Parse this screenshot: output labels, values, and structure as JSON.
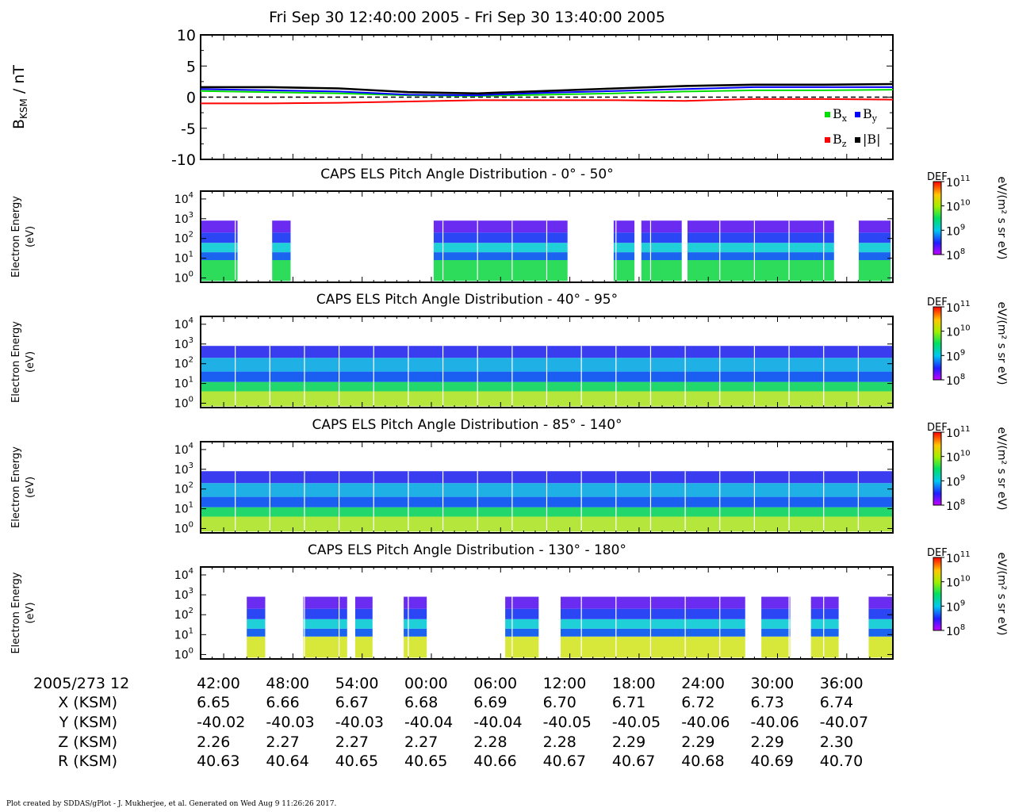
{
  "title": "Fri Sep 30 12:40:00 2005 - Fri Sep 30 13:40:00 2005",
  "footer": "Plot created by SDDAS/gPlot - J. Mukherjee, et al.  Generated on Wed Aug 9 11:26:26 2017.",
  "colors": {
    "bx": "#00dd00",
    "by": "#0000ff",
    "bz": "#ff0000",
    "btot": "#000000"
  },
  "chart_data": [
    {
      "type": "line",
      "ylabel_main": "B",
      "ylabel_sub": "KSM",
      "ylabel_unit": " / nT",
      "ylim": [
        -10,
        10
      ],
      "yticks": [
        "10",
        "5",
        "0",
        "-5",
        "-10"
      ],
      "xlim_minutes": [
        0,
        60
      ],
      "zero_line": "dashed",
      "legend": {
        "placement": "bottom-right",
        "entries": [
          {
            "key": "bx",
            "main": "B",
            "sub": "x"
          },
          {
            "key": "by",
            "main": "B",
            "sub": "y"
          },
          {
            "key": "bz",
            "main": "B",
            "sub": "z"
          },
          {
            "key": "btot",
            "main": "|B|",
            "sub": ""
          }
        ]
      },
      "series": [
        {
          "key": "bx",
          "minutes": [
            0,
            6,
            12,
            18,
            24,
            30,
            36,
            42,
            48,
            54,
            60
          ],
          "values": [
            1.0,
            0.8,
            0.6,
            0.3,
            0.2,
            0.4,
            0.6,
            0.9,
            1.1,
            1.1,
            1.2
          ]
        },
        {
          "key": "by",
          "minutes": [
            0,
            6,
            12,
            18,
            24,
            30,
            36,
            42,
            48,
            54,
            60
          ],
          "values": [
            1.3,
            1.1,
            0.9,
            0.4,
            0.3,
            0.7,
            1.0,
            1.3,
            1.6,
            1.6,
            1.6
          ]
        },
        {
          "key": "bz",
          "minutes": [
            0,
            6,
            12,
            18,
            24,
            30,
            36,
            42,
            48,
            54,
            60
          ],
          "values": [
            -1.0,
            -1.0,
            -0.9,
            -0.7,
            -0.5,
            -0.5,
            -0.5,
            -0.6,
            -0.3,
            -0.3,
            -0.4
          ]
        },
        {
          "key": "btot",
          "minutes": [
            0,
            6,
            12,
            18,
            24,
            30,
            36,
            42,
            48,
            54,
            60
          ],
          "values": [
            1.6,
            1.6,
            1.4,
            0.8,
            0.6,
            1.0,
            1.4,
            1.8,
            2.0,
            2.0,
            2.1
          ]
        }
      ]
    },
    {
      "type": "heatmap",
      "title": "CAPS ELS Pitch Angle Distribution - 0° - 50°",
      "ylabel_1": "Electron Energy",
      "ylabel_2": "(eV)",
      "y_scale": "log",
      "ylim": [
        0.6,
        25000
      ],
      "yticks": [
        1,
        10,
        100,
        1000,
        10000
      ],
      "colorbar": {
        "label": "DEF",
        "unit": "eV/(m² s sr eV)",
        "ticks": [
          8,
          9,
          10,
          11
        ],
        "scale": "log"
      },
      "data_intervals_minutes": [
        [
          0,
          3.2
        ],
        [
          6.2,
          7.8
        ],
        [
          20.2,
          31.8
        ],
        [
          35.8,
          37.6
        ],
        [
          38.2,
          41.7
        ],
        [
          42.2,
          54.9
        ],
        [
          57.0,
          59.8
        ]
      ],
      "bands": [
        {
          "from": 0.7,
          "to": 8,
          "color": "#2cdc5a"
        },
        {
          "from": 8,
          "to": 20,
          "color": "#1a64f0"
        },
        {
          "from": 20,
          "to": 60,
          "color": "#20d0d8"
        },
        {
          "from": 60,
          "to": 200,
          "color": "#2a46f5"
        },
        {
          "from": 200,
          "to": 800,
          "color": "#6b2cf2"
        }
      ]
    },
    {
      "type": "heatmap",
      "title": "CAPS ELS Pitch Angle Distribution - 40° - 95°",
      "ylabel_1": "Electron Energy",
      "ylabel_2": "(eV)",
      "y_scale": "log",
      "ylim": [
        0.6,
        25000
      ],
      "yticks": [
        1,
        10,
        100,
        1000,
        10000
      ],
      "colorbar": {
        "label": "DEF",
        "unit": "eV/(m² s sr eV)",
        "ticks": [
          8,
          9,
          10,
          11
        ],
        "scale": "log"
      },
      "data_intervals_minutes": [
        [
          0,
          60
        ]
      ],
      "bands": [
        {
          "from": 0.7,
          "to": 4,
          "color": "#b4e63c"
        },
        {
          "from": 4,
          "to": 12,
          "color": "#22d86c"
        },
        {
          "from": 12,
          "to": 40,
          "color": "#1a5ef2"
        },
        {
          "from": 40,
          "to": 200,
          "color": "#1fb0e6"
        },
        {
          "from": 200,
          "to": 800,
          "color": "#3a3cf0"
        }
      ]
    },
    {
      "type": "heatmap",
      "title": "CAPS ELS Pitch Angle Distribution - 85° - 140°",
      "ylabel_1": "Electron Energy",
      "ylabel_2": "(eV)",
      "y_scale": "log",
      "ylim": [
        0.6,
        25000
      ],
      "yticks": [
        1,
        10,
        100,
        1000,
        10000
      ],
      "colorbar": {
        "label": "DEF",
        "unit": "eV/(m² s sr eV)",
        "ticks": [
          8,
          9,
          10,
          11
        ],
        "scale": "log"
      },
      "data_intervals_minutes": [
        [
          0,
          60
        ]
      ],
      "bands": [
        {
          "from": 0.7,
          "to": 4,
          "color": "#b4e63c"
        },
        {
          "from": 4,
          "to": 12,
          "color": "#22d86c"
        },
        {
          "from": 12,
          "to": 40,
          "color": "#1a5ef2"
        },
        {
          "from": 40,
          "to": 200,
          "color": "#1fb0e6"
        },
        {
          "from": 200,
          "to": 800,
          "color": "#3a3cf0"
        }
      ]
    },
    {
      "type": "heatmap",
      "title": "CAPS ELS Pitch Angle Distribution - 130° - 180°",
      "ylabel_1": "Electron Energy",
      "ylabel_2": "(eV)",
      "y_scale": "log",
      "ylim": [
        0.6,
        25000
      ],
      "yticks": [
        1,
        10,
        100,
        1000,
        10000
      ],
      "colorbar": {
        "label": "DEF",
        "unit": "eV/(m² s sr eV)",
        "ticks": [
          8,
          9,
          10,
          11
        ],
        "scale": "log"
      },
      "data_intervals_minutes": [
        [
          4.0,
          5.6
        ],
        [
          8.9,
          12.7
        ],
        [
          13.4,
          14.9
        ],
        [
          17.6,
          19.6
        ],
        [
          26.4,
          29.3
        ],
        [
          31.2,
          47.2
        ],
        [
          48.6,
          51.1
        ],
        [
          52.9,
          55.3
        ],
        [
          57.9,
          61.5
        ]
      ],
      "bands": [
        {
          "from": 0.7,
          "to": 8,
          "color": "#d8e83a"
        },
        {
          "from": 8,
          "to": 20,
          "color": "#1a64f0"
        },
        {
          "from": 20,
          "to": 60,
          "color": "#20d0d8"
        },
        {
          "from": 60,
          "to": 200,
          "color": "#2a46f5"
        },
        {
          "from": 200,
          "to": 800,
          "color": "#6b2cf2"
        }
      ]
    }
  ],
  "axis_table": {
    "date_label": "2005/273 12",
    "ticks": [
      {
        "minute": 2,
        "label": "42:00"
      },
      {
        "minute": 8,
        "label": "48:00"
      },
      {
        "minute": 14,
        "label": "54:00"
      },
      {
        "minute": 20,
        "label": "00:00"
      },
      {
        "minute": 26,
        "label": "06:00"
      },
      {
        "minute": 32,
        "label": "12:00"
      },
      {
        "minute": 38,
        "label": "18:00"
      },
      {
        "minute": 44,
        "label": "24:00"
      },
      {
        "minute": 50,
        "label": "30:00"
      },
      {
        "minute": 56,
        "label": "36:00"
      }
    ],
    "rows": [
      {
        "label": "X (KSM)",
        "values": [
          "6.65",
          "6.66",
          "6.67",
          "6.68",
          "6.69",
          "6.70",
          "6.71",
          "6.72",
          "6.73",
          "6.74"
        ]
      },
      {
        "label": "Y (KSM)",
        "values": [
          "-40.02",
          "-40.03",
          "-40.03",
          "-40.04",
          "-40.04",
          "-40.05",
          "-40.05",
          "-40.06",
          "-40.06",
          "-40.07"
        ]
      },
      {
        "label": "Z (KSM)",
        "values": [
          "2.26",
          "2.27",
          "2.27",
          "2.27",
          "2.28",
          "2.28",
          "2.29",
          "2.29",
          "2.29",
          "2.30"
        ]
      },
      {
        "label": "R (KSM)",
        "values": [
          "40.63",
          "40.64",
          "40.65",
          "40.65",
          "40.66",
          "40.67",
          "40.67",
          "40.68",
          "40.69",
          "40.70"
        ]
      }
    ]
  }
}
